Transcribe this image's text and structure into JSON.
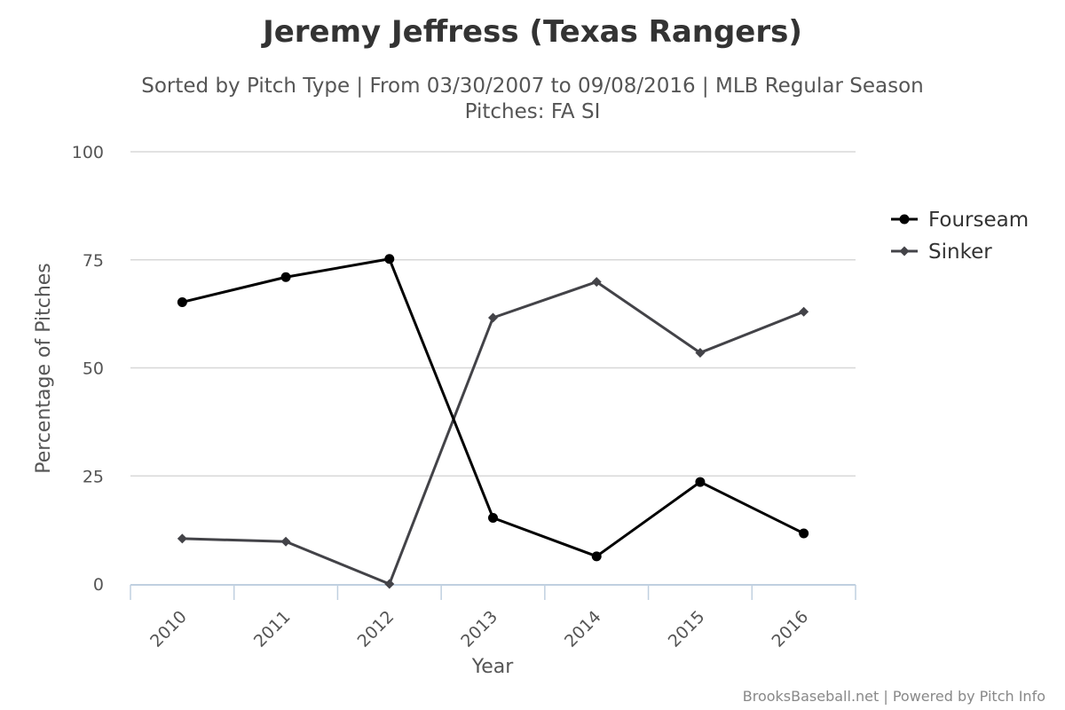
{
  "chart_data": {
    "type": "line",
    "title": "Jeremy Jeffress (Texas Rangers)",
    "subtitle_line1": "Sorted by Pitch Type | From 03/30/2007 to 09/08/2016 | MLB Regular Season",
    "subtitle_line2": "Pitches: FA SI",
    "xlabel": "Year",
    "ylabel": "Percentage of Pitches",
    "categories": [
      "2010",
      "2011",
      "2012",
      "2013",
      "2014",
      "2015",
      "2016"
    ],
    "ylim": [
      0,
      100
    ],
    "yticks": [
      0,
      25,
      50,
      75,
      100
    ],
    "grid": true,
    "legend_position": "right",
    "series": [
      {
        "name": "Fourseam",
        "marker": "circle",
        "color": "#000000",
        "values": [
          65.2,
          71.0,
          75.2,
          15.3,
          6.4,
          23.6,
          11.7
        ]
      },
      {
        "name": "Sinker",
        "marker": "diamond",
        "color": "#434348",
        "values": [
          10.5,
          9.8,
          0.0,
          61.6,
          69.9,
          53.5,
          63.0
        ]
      }
    ],
    "credits": "BrooksBaseball.net | Powered by Pitch Info"
  }
}
